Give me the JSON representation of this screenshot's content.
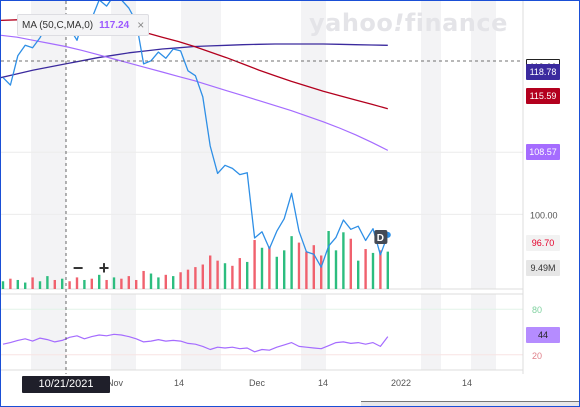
{
  "logo": {
    "text_a": "yahoo",
    "bang": "!",
    "text_b": "finance"
  },
  "ma_legend": {
    "label": "MA (50,C,MA,0)",
    "value": "117.24",
    "close_glyph": "×"
  },
  "zoom": {
    "minus": "−",
    "plus": "+"
  },
  "crosshair_date": "10/21/2021",
  "price_labels": [
    {
      "text": "119.66",
      "bg": "#ffffff",
      "fg": "#222222",
      "border": "#222222"
    },
    {
      "text": "118.78",
      "bg": "#3b2a9e",
      "fg": "#ffffff",
      "border": "#3b2a9e"
    },
    {
      "text": "115.59",
      "bg": "#b3001e",
      "fg": "#ffffff",
      "border": "#b3001e"
    },
    {
      "text": "108.57",
      "bg": "#a56cff",
      "fg": "#ffffff",
      "border": "#a56cff"
    },
    {
      "text": "96.70",
      "bg": "#f2f2f2",
      "fg": "#e4002b",
      "border": "#f2f2f2"
    },
    {
      "text": "9.49M",
      "bg": "#e6e6e6",
      "fg": "#333333",
      "border": "#e6e6e6"
    },
    {
      "text": "44",
      "bg": "#b58cff",
      "fg": "#222222",
      "border": "#b58cff"
    }
  ],
  "dividend_marker": "D",
  "chart_data": {
    "type": "line",
    "x_ticks": [
      "Nov",
      "14",
      "Dec",
      "14",
      "2022",
      "14"
    ],
    "price_axis": {
      "ticks": [
        110.0,
        100.0
      ],
      "tick_labels": [
        "110.00",
        "100.00"
      ],
      "ylim": [
        88,
        134
      ]
    },
    "rsi_axis": {
      "ticks": [
        80,
        20
      ],
      "tick_labels": [
        "80",
        "20"
      ],
      "ylim": [
        0,
        100
      ]
    },
    "colors": {
      "price": "#2e8fe6",
      "ma50": "#a56cff",
      "ma_long1": "#b3001e",
      "ma_long2": "#3b2a9e",
      "up": "#2dbd7f",
      "down": "#f0616e",
      "rsi": "#a56cff"
    },
    "series": [
      {
        "values": [
          122.0,
          120.8,
          125.5,
          127.2,
          126.8,
          128.4,
          130.8,
          129.8,
          131.5,
          130.0,
          128.0,
          132.0,
          131.5,
          134.5,
          133.5,
          135.2,
          134.5,
          133.2,
          131.0,
          124.2,
          124.7,
          126.1,
          125.1,
          126.6,
          126.3,
          123.1,
          122.3,
          118.9,
          111.0,
          106.6,
          107.9,
          107.4,
          106.4,
          106.7,
          96.2,
          97.2,
          94.5,
          97.3,
          99.3,
          103.4,
          97.3,
          94.0,
          93.6,
          91.5,
          94.9,
          96.3,
          99.1,
          97.6,
          98.1,
          95.8,
          97.7,
          93.5,
          96.7
        ]
      },
      {
        "values": [
          128.8,
          128.5,
          128.0,
          127.5,
          127.0,
          126.4,
          125.7,
          125.0,
          124.3,
          123.6,
          122.9,
          122.2,
          121.5,
          120.7,
          119.9,
          119.1,
          118.3,
          117.5,
          116.7,
          115.8,
          114.9,
          113.9,
          112.8,
          111.6,
          110.3
        ]
      },
      {
        "values": [
          131.2,
          131.3,
          131.3,
          131.2,
          131.1,
          130.9,
          130.6,
          130.3,
          129.8,
          129.2,
          128.5,
          127.8,
          127.0,
          126.1,
          125.2,
          124.2,
          123.2,
          122.3,
          121.4,
          120.6,
          119.8,
          119.1,
          118.4,
          117.7,
          117.0
        ]
      },
      {
        "values": [
          122.0,
          122.6,
          123.2,
          123.7,
          124.2,
          124.7,
          125.2,
          125.6,
          126.0,
          126.3,
          126.6,
          126.8,
          127.0,
          127.1,
          127.2,
          127.3,
          127.35,
          127.4,
          127.4,
          127.4,
          127.4,
          127.35,
          127.3,
          127.25,
          127.2
        ]
      },
      {
        "values": [
          0.6,
          0.8,
          0.7,
          0.5,
          0.9,
          0.6,
          1.0,
          0.7,
          0.8,
          0.6,
          0.9,
          0.7,
          0.8,
          1.1,
          0.7,
          0.9,
          0.8,
          1.0,
          0.7,
          1.4,
          1.2,
          0.9,
          1.1,
          1.0,
          1.3,
          1.5,
          1.7,
          1.9,
          2.6,
          2.2,
          2.0,
          1.8,
          2.4,
          2.1,
          3.8,
          3.2,
          3.3,
          2.5,
          3.0,
          4.1,
          3.6,
          2.9,
          3.4,
          2.6,
          4.5,
          3.0,
          4.4,
          3.9,
          2.2,
          3.1,
          2.8,
          3.0,
          2.9
        ]
      },
      {
        "values": [
          34,
          36,
          39,
          41,
          38,
          42,
          40,
          37,
          39,
          43,
          45,
          41,
          44,
          46,
          45,
          47,
          46,
          44,
          41,
          37,
          38,
          40,
          38,
          39,
          38,
          35,
          34,
          31,
          27,
          30,
          29,
          30,
          28,
          29,
          24,
          27,
          26,
          30,
          33,
          36,
          31,
          30,
          29,
          28,
          32,
          36,
          37,
          35,
          36,
          34,
          36,
          31,
          44
        ]
      }
    ]
  }
}
